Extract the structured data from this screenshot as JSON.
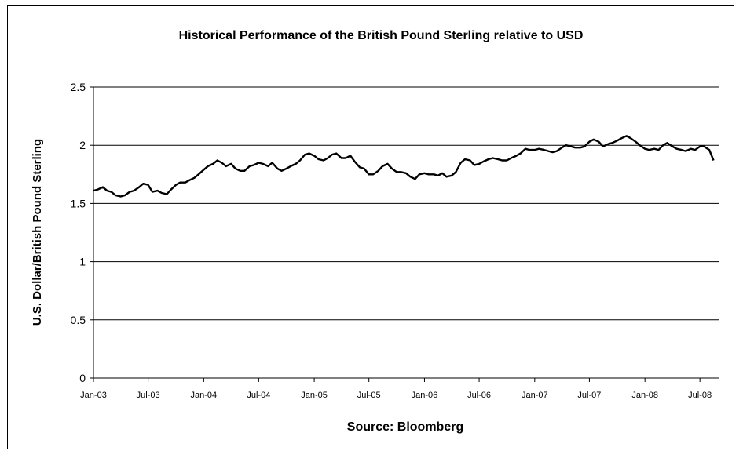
{
  "chart_data": {
    "type": "line",
    "title": "Historical Performance of the British Pound Sterling relative to USD",
    "xlabel": "Source: Bloomberg",
    "ylabel": "U.S. Dollar/British Pound Sterling",
    "ylim": [
      0,
      2.5
    ],
    "y_ticks": [
      "0",
      "0.5",
      "1",
      "1.5",
      "2",
      "2.5"
    ],
    "x_ticks": [
      "Jan-03",
      "Jul-03",
      "Jan-04",
      "Jul-04",
      "Jan-05",
      "Jul-05",
      "Jan-06",
      "Jul-06",
      "Jan-07",
      "Jul-07",
      "Jan-08",
      "Jul-08"
    ],
    "grid": "horizontal",
    "legend": "none",
    "series": [
      {
        "points": [
          [
            "2003-01-01",
            1.61
          ],
          [
            "2003-01-15",
            1.62
          ],
          [
            "2003-02-01",
            1.64
          ],
          [
            "2003-02-15",
            1.61
          ],
          [
            "2003-03-01",
            1.6
          ],
          [
            "2003-03-15",
            1.57
          ],
          [
            "2003-04-01",
            1.56
          ],
          [
            "2003-04-15",
            1.57
          ],
          [
            "2003-05-01",
            1.6
          ],
          [
            "2003-05-15",
            1.61
          ],
          [
            "2003-06-01",
            1.64
          ],
          [
            "2003-06-15",
            1.67
          ],
          [
            "2003-07-01",
            1.66
          ],
          [
            "2003-07-15",
            1.6
          ],
          [
            "2003-08-01",
            1.61
          ],
          [
            "2003-08-15",
            1.59
          ],
          [
            "2003-09-01",
            1.58
          ],
          [
            "2003-09-15",
            1.62
          ],
          [
            "2003-10-01",
            1.66
          ],
          [
            "2003-10-15",
            1.68
          ],
          [
            "2003-11-01",
            1.68
          ],
          [
            "2003-11-15",
            1.7
          ],
          [
            "2003-12-01",
            1.72
          ],
          [
            "2003-12-15",
            1.75
          ],
          [
            "2004-01-01",
            1.79
          ],
          [
            "2004-01-15",
            1.82
          ],
          [
            "2004-02-01",
            1.84
          ],
          [
            "2004-02-15",
            1.87
          ],
          [
            "2004-03-01",
            1.85
          ],
          [
            "2004-03-15",
            1.82
          ],
          [
            "2004-04-01",
            1.84
          ],
          [
            "2004-04-15",
            1.8
          ],
          [
            "2004-05-01",
            1.78
          ],
          [
            "2004-05-15",
            1.78
          ],
          [
            "2004-06-01",
            1.82
          ],
          [
            "2004-06-15",
            1.83
          ],
          [
            "2004-07-01",
            1.85
          ],
          [
            "2004-07-15",
            1.84
          ],
          [
            "2004-08-01",
            1.82
          ],
          [
            "2004-08-15",
            1.85
          ],
          [
            "2004-09-01",
            1.8
          ],
          [
            "2004-09-15",
            1.78
          ],
          [
            "2004-10-01",
            1.8
          ],
          [
            "2004-10-15",
            1.82
          ],
          [
            "2004-11-01",
            1.84
          ],
          [
            "2004-11-15",
            1.87
          ],
          [
            "2004-12-01",
            1.92
          ],
          [
            "2004-12-15",
            1.93
          ],
          [
            "2005-01-01",
            1.91
          ],
          [
            "2005-01-15",
            1.88
          ],
          [
            "2005-02-01",
            1.87
          ],
          [
            "2005-02-15",
            1.89
          ],
          [
            "2005-03-01",
            1.92
          ],
          [
            "2005-03-15",
            1.93
          ],
          [
            "2005-04-01",
            1.89
          ],
          [
            "2005-04-15",
            1.89
          ],
          [
            "2005-05-01",
            1.91
          ],
          [
            "2005-05-15",
            1.86
          ],
          [
            "2005-06-01",
            1.81
          ],
          [
            "2005-06-15",
            1.8
          ],
          [
            "2005-07-01",
            1.75
          ],
          [
            "2005-07-15",
            1.75
          ],
          [
            "2005-08-01",
            1.78
          ],
          [
            "2005-08-15",
            1.82
          ],
          [
            "2005-09-01",
            1.84
          ],
          [
            "2005-09-15",
            1.8
          ],
          [
            "2005-10-01",
            1.77
          ],
          [
            "2005-10-15",
            1.77
          ],
          [
            "2005-11-01",
            1.76
          ],
          [
            "2005-11-15",
            1.73
          ],
          [
            "2005-12-01",
            1.71
          ],
          [
            "2005-12-15",
            1.75
          ],
          [
            "2006-01-01",
            1.76
          ],
          [
            "2006-01-15",
            1.75
          ],
          [
            "2006-02-01",
            1.75
          ],
          [
            "2006-02-15",
            1.74
          ],
          [
            "2006-03-01",
            1.76
          ],
          [
            "2006-03-15",
            1.73
          ],
          [
            "2006-04-01",
            1.74
          ],
          [
            "2006-04-15",
            1.77
          ],
          [
            "2006-05-01",
            1.85
          ],
          [
            "2006-05-15",
            1.88
          ],
          [
            "2006-06-01",
            1.87
          ],
          [
            "2006-06-15",
            1.83
          ],
          [
            "2006-07-01",
            1.84
          ],
          [
            "2006-07-15",
            1.86
          ],
          [
            "2006-08-01",
            1.88
          ],
          [
            "2006-08-15",
            1.89
          ],
          [
            "2006-09-01",
            1.88
          ],
          [
            "2006-09-15",
            1.87
          ],
          [
            "2006-10-01",
            1.87
          ],
          [
            "2006-10-15",
            1.89
          ],
          [
            "2006-11-01",
            1.91
          ],
          [
            "2006-11-15",
            1.93
          ],
          [
            "2006-12-01",
            1.97
          ],
          [
            "2006-12-15",
            1.96
          ],
          [
            "2007-01-01",
            1.96
          ],
          [
            "2007-01-15",
            1.97
          ],
          [
            "2007-02-01",
            1.96
          ],
          [
            "2007-02-15",
            1.95
          ],
          [
            "2007-03-01",
            1.94
          ],
          [
            "2007-03-15",
            1.95
          ],
          [
            "2007-04-01",
            1.98
          ],
          [
            "2007-04-15",
            2.0
          ],
          [
            "2007-05-01",
            1.99
          ],
          [
            "2007-05-15",
            1.98
          ],
          [
            "2007-06-01",
            1.98
          ],
          [
            "2007-06-15",
            1.99
          ],
          [
            "2007-07-01",
            2.03
          ],
          [
            "2007-07-15",
            2.05
          ],
          [
            "2007-08-01",
            2.03
          ],
          [
            "2007-08-15",
            1.99
          ],
          [
            "2007-09-01",
            2.01
          ],
          [
            "2007-09-15",
            2.02
          ],
          [
            "2007-10-01",
            2.04
          ],
          [
            "2007-10-15",
            2.06
          ],
          [
            "2007-11-01",
            2.08
          ],
          [
            "2007-11-15",
            2.06
          ],
          [
            "2007-12-01",
            2.03
          ],
          [
            "2007-12-15",
            2.0
          ],
          [
            "2008-01-01",
            1.97
          ],
          [
            "2008-01-15",
            1.96
          ],
          [
            "2008-02-01",
            1.97
          ],
          [
            "2008-02-15",
            1.96
          ],
          [
            "2008-03-01",
            2.0
          ],
          [
            "2008-03-15",
            2.02
          ],
          [
            "2008-04-01",
            1.99
          ],
          [
            "2008-04-15",
            1.97
          ],
          [
            "2008-05-01",
            1.96
          ],
          [
            "2008-05-15",
            1.95
          ],
          [
            "2008-06-01",
            1.97
          ],
          [
            "2008-06-15",
            1.96
          ],
          [
            "2008-07-01",
            1.99
          ],
          [
            "2008-07-15",
            1.99
          ],
          [
            "2008-08-01",
            1.96
          ],
          [
            "2008-08-15",
            1.87
          ]
        ]
      }
    ]
  }
}
